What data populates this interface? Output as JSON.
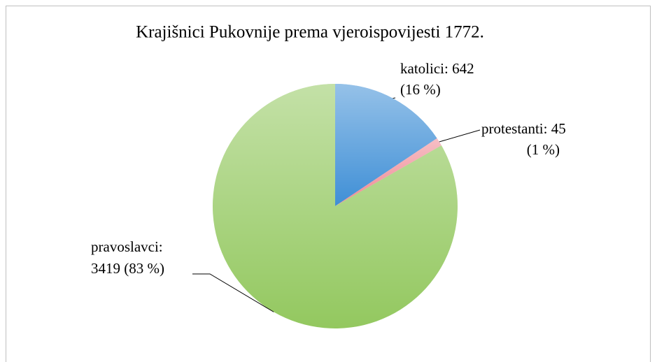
{
  "chart_data": {
    "type": "pie",
    "title": "Krajišnici Pukovnije prema vjeroispovijesti 1772.",
    "values": [
      642,
      45,
      3419
    ],
    "value_labels": [
      [
        "katolici: 642",
        "(16 %)"
      ],
      [
        "protestanti: 45",
        "(1 %)"
      ],
      [
        "pravoslavci:",
        "3419 (83 %)"
      ]
    ],
    "colors": [
      "#3f8fd6",
      "#ef8a95",
      "#93c85f"
    ]
  }
}
